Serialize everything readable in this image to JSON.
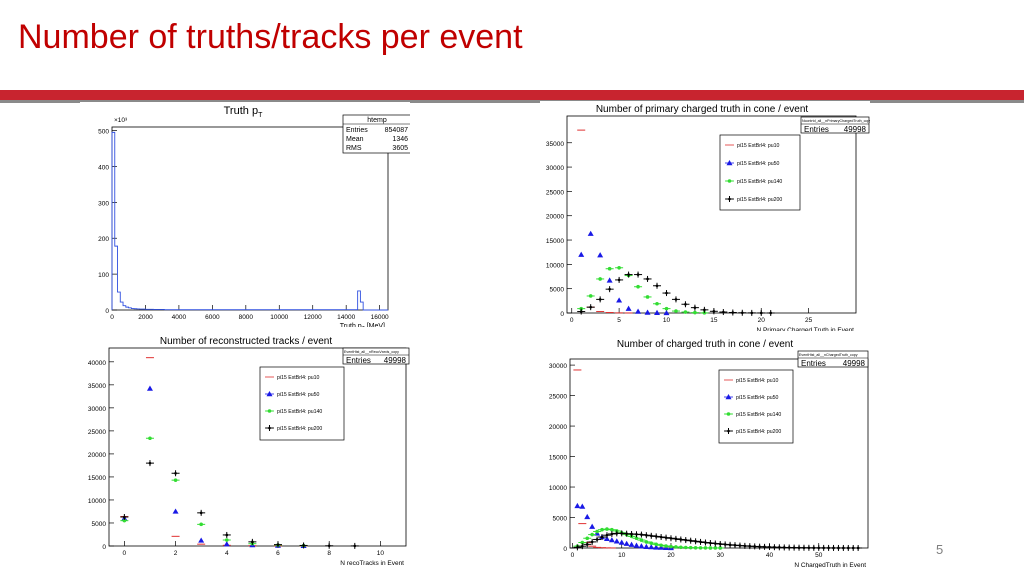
{
  "slide": {
    "title": "Number of truths/tracks per event",
    "page_number": "5"
  },
  "colors": {
    "title": "#c00000",
    "rule": "#c8242f",
    "pu10": "#e03030",
    "pu50": "#1a1ae6",
    "pu140": "#33dd33",
    "pu200": "#000000",
    "hist": "#3050e0"
  },
  "chart_data": [
    {
      "id": "truth-pt",
      "type": "bar",
      "title": "Truth p",
      "title_sub": "T",
      "xlabel": "Truth p",
      "xlabel_sub": "T",
      "xlabel_unit": " [MeV]",
      "ylabel": "",
      "y_multiplier": "×10³",
      "xlim": [
        0,
        16500
      ],
      "ylim": [
        0,
        510
      ],
      "xticks": [
        0,
        2000,
        4000,
        6000,
        8000,
        10000,
        12000,
        14000,
        16000
      ],
      "yticks": [
        0,
        100,
        200,
        300,
        400,
        500
      ],
      "stats": {
        "name": "htemp",
        "rows": [
          [
            "Entries",
            "854087"
          ],
          [
            "Mean",
            "1346"
          ],
          [
            "RMS",
            "3605"
          ]
        ]
      },
      "bin_width": 165,
      "values": [
        495,
        178,
        50,
        22,
        12,
        8,
        6,
        4,
        3.5,
        3,
        2.5,
        2.5,
        2,
        2,
        2,
        1.5,
        1.5,
        1.5,
        1.5,
        1,
        1,
        1,
        1,
        1,
        1,
        1,
        1,
        1,
        1,
        1,
        1,
        1,
        1,
        1,
        1,
        1,
        1,
        1,
        1,
        1,
        1,
        1,
        1,
        1,
        1,
        1,
        1,
        1,
        1,
        1,
        1,
        1,
        1,
        1,
        1,
        1,
        1,
        1,
        1,
        1,
        1,
        1,
        1,
        1,
        1,
        1,
        1,
        1,
        1,
        1,
        1,
        1,
        1,
        1,
        1,
        1,
        1,
        1,
        1,
        1,
        1,
        1,
        1,
        1,
        1,
        1,
        1,
        1,
        1,
        53,
        22,
        0,
        0,
        0,
        0,
        0,
        0,
        0,
        0,
        0
      ]
    },
    {
      "id": "primary-charged-truth",
      "type": "scatter",
      "title": "Number of primary charged truth in cone / event",
      "xlabel": "N Primary Charged Truth in Event",
      "ylabel": "",
      "xlim": [
        -0.5,
        30
      ],
      "ylim": [
        0,
        40500
      ],
      "xticks": [
        0,
        5,
        10,
        15,
        20,
        25
      ],
      "yticks": [
        0,
        5000,
        10000,
        15000,
        20000,
        25000,
        30000,
        35000
      ],
      "stats_name": "Ncontrtd_all__nPrimaryChargedTruth_copy",
      "stats": [
        [
          "Entries",
          "49998"
        ]
      ],
      "series": [
        {
          "name": "pi15 ExtBrl4: pu10",
          "x": [
            1,
            2,
            3,
            4,
            5,
            6
          ],
          "y": [
            37600,
            1200,
            300,
            100,
            30,
            10
          ]
        },
        {
          "name": "pi15 ExtBrl4: pu50",
          "x": [
            1,
            2,
            3,
            4,
            5,
            6,
            7,
            8,
            9,
            10
          ],
          "y": [
            12000,
            16300,
            11900,
            6700,
            2600,
            900,
            300,
            100,
            40,
            10
          ]
        },
        {
          "name": "pi15 ExtBrl4: pu140",
          "x": [
            1,
            2,
            3,
            4,
            5,
            6,
            7,
            8,
            9,
            10,
            11,
            12,
            13,
            14
          ],
          "y": [
            900,
            3500,
            7000,
            9100,
            9300,
            7700,
            5400,
            3300,
            1900,
            900,
            400,
            200,
            80,
            30
          ]
        },
        {
          "name": "pi15 ExtBrl4: pu200",
          "x": [
            1,
            2,
            3,
            4,
            5,
            6,
            7,
            8,
            9,
            10,
            11,
            12,
            13,
            14,
            15,
            16,
            17,
            18,
            19,
            20,
            21
          ],
          "y": [
            300,
            1200,
            2800,
            4900,
            6800,
            7900,
            7900,
            7000,
            5600,
            4100,
            2800,
            1800,
            1100,
            650,
            350,
            200,
            100,
            50,
            25,
            10,
            5
          ]
        }
      ]
    },
    {
      "id": "reco-tracks",
      "type": "scatter",
      "title": "Number of reconstructed tracks / event",
      "xlabel": "N recoTracks in Event",
      "ylabel": "",
      "xlim": [
        -0.6,
        11
      ],
      "ylim": [
        0,
        43000
      ],
      "xticks": [
        0,
        2,
        4,
        6,
        8,
        10
      ],
      "yticks": [
        0,
        5000,
        10000,
        15000,
        20000,
        25000,
        30000,
        35000,
        40000
      ],
      "stats_name": "EventHist_all__nRecoVxeds_copy",
      "stats": [
        [
          "Entries",
          "49998"
        ]
      ],
      "series": [
        {
          "name": "pi15 ExtBrl4: pu10",
          "x": [
            0,
            1,
            2,
            3,
            4,
            5,
            6,
            7
          ],
          "y": [
            6400,
            40900,
            2100,
            400,
            150,
            60,
            30,
            10
          ]
        },
        {
          "name": "pi15 ExtBrl4: pu50",
          "x": [
            0,
            1,
            2,
            3,
            4,
            5,
            6,
            7
          ],
          "y": [
            6000,
            34200,
            7500,
            1200,
            400,
            200,
            100,
            50
          ]
        },
        {
          "name": "pi15 ExtBrl4: pu140",
          "x": [
            0,
            1,
            2,
            3,
            4,
            5,
            6,
            7
          ],
          "y": [
            5500,
            23400,
            14300,
            4700,
            1300,
            500,
            200,
            80
          ]
        },
        {
          "name": "pi15 ExtBrl4: pu200",
          "x": [
            0,
            1,
            2,
            3,
            4,
            5,
            6,
            7,
            8,
            9
          ],
          "y": [
            6300,
            18000,
            15800,
            7200,
            2400,
            900,
            300,
            120,
            50,
            20
          ]
        }
      ]
    },
    {
      "id": "charged-truth",
      "type": "scatter",
      "title": "Number of charged truth in cone / event",
      "xlabel": "N ChargedTruth in Event",
      "ylabel": "",
      "xlim": [
        -0.5,
        60
      ],
      "ylim": [
        0,
        31000
      ],
      "xticks": [
        0,
        10,
        20,
        30,
        40,
        50
      ],
      "yticks": [
        0,
        5000,
        10000,
        15000,
        20000,
        25000,
        30000
      ],
      "stats_name": "EventHist_all__nChargedTruth_copy",
      "stats": [
        [
          "Entries",
          "49998"
        ]
      ],
      "series": [
        {
          "name": "pi15 ExtBrl4: pu10",
          "x": [
            1,
            2,
            3,
            4,
            5,
            6,
            7,
            8
          ],
          "y": [
            29200,
            4000,
            900,
            300,
            100,
            50,
            20,
            10
          ]
        },
        {
          "name": "pi15 ExtBrl4: pu50",
          "x": [
            1,
            2,
            3,
            4,
            5,
            6,
            7,
            8,
            9,
            10,
            11,
            12,
            13,
            14,
            15,
            16,
            17,
            18,
            19,
            20
          ],
          "y": [
            6900,
            6800,
            5100,
            3500,
            2400,
            1800,
            1500,
            1300,
            1100,
            900,
            700,
            550,
            400,
            300,
            200,
            150,
            100,
            70,
            40,
            20
          ]
        },
        {
          "name": "pi15 ExtBrl4: pu140",
          "x": [
            1,
            2,
            3,
            4,
            5,
            6,
            7,
            8,
            9,
            10,
            11,
            12,
            13,
            14,
            15,
            16,
            17,
            18,
            19,
            20,
            21,
            22,
            23,
            24,
            25,
            26,
            27,
            28,
            29,
            30
          ],
          "y": [
            300,
            900,
            1600,
            2200,
            2700,
            3000,
            3100,
            3000,
            2800,
            2500,
            2200,
            1900,
            1600,
            1300,
            1000,
            800,
            600,
            450,
            330,
            240,
            170,
            120,
            80,
            55,
            35,
            22,
            14,
            9,
            5,
            3
          ]
        },
        {
          "name": "pi15 ExtBrl4: pu200",
          "x": [
            1,
            2,
            3,
            4,
            5,
            6,
            7,
            8,
            9,
            10,
            11,
            12,
            13,
            14,
            15,
            16,
            17,
            18,
            19,
            20,
            21,
            22,
            23,
            24,
            25,
            26,
            27,
            28,
            29,
            30,
            31,
            32,
            33,
            34,
            35,
            36,
            37,
            38,
            39,
            40,
            41,
            42,
            43,
            44,
            45,
            46,
            47,
            48,
            49,
            50,
            51,
            52,
            53,
            54,
            55,
            56,
            57,
            58
          ],
          "y": [
            100,
            300,
            600,
            1000,
            1400,
            1800,
            2100,
            2300,
            2400,
            2400,
            2350,
            2300,
            2250,
            2200,
            2100,
            2000,
            1900,
            1800,
            1700,
            1600,
            1500,
            1400,
            1300,
            1200,
            1100,
            1000,
            900,
            820,
            740,
            660,
            590,
            520,
            460,
            400,
            350,
            300,
            260,
            220,
            190,
            160,
            130,
            110,
            90,
            75,
            60,
            50,
            40,
            32,
            26,
            20,
            16,
            13,
            10,
            8,
            6,
            5,
            4,
            3
          ]
        }
      ]
    }
  ]
}
